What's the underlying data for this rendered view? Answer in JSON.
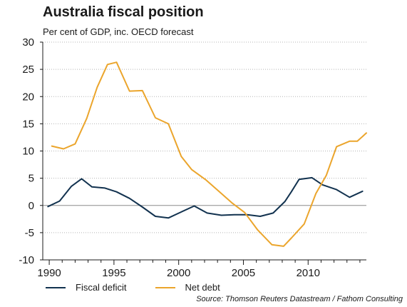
{
  "chart_data": {
    "type": "line",
    "title": "Australia fiscal position",
    "subtitle": "Per cent of GDP, inc. OECD forecast",
    "xlabel": "",
    "ylabel": "",
    "xlim": [
      1989.5,
      2014.5
    ],
    "ylim": [
      -10,
      30
    ],
    "x_ticks": [
      1990,
      1995,
      2000,
      2005,
      2010
    ],
    "y_ticks": [
      30,
      25,
      20,
      15,
      10,
      5,
      0,
      -5,
      -10
    ],
    "grid": true,
    "legend_position": "bottom-left",
    "series": [
      {
        "name": "Fiscal deficit",
        "color": "#12324f",
        "x": [
          1989.9,
          1990.8,
          1991.7,
          1992.5,
          1993.3,
          1994.3,
          1995.2,
          1996.2,
          1997.2,
          1998.2,
          1999.2,
          2000.2,
          2001.2,
          2002.2,
          2003.3,
          2004.3,
          2005.3,
          2006.3,
          2007.3,
          2008.2,
          2008.7,
          2009.3,
          2010.3,
          2011.1,
          2012.2,
          2013.2,
          2014.2
        ],
        "values": [
          -0.2,
          0.8,
          3.5,
          4.9,
          3.4,
          3.2,
          2.5,
          1.3,
          -0.3,
          -2.0,
          -2.3,
          -1.2,
          -0.1,
          -1.4,
          -1.8,
          -1.7,
          -1.7,
          -2.0,
          -1.4,
          0.7,
          2.5,
          4.8,
          5.1,
          3.8,
          2.9,
          1.5,
          2.6
        ]
      },
      {
        "name": "Net debt",
        "color": "#eba52c",
        "x": [
          1990.2,
          1991.1,
          1992.0,
          1992.9,
          1993.7,
          1994.5,
          1995.2,
          1996.2,
          1997.2,
          1998.2,
          1999.2,
          2000.2,
          2001.0,
          2002.1,
          2003.1,
          2004.1,
          2005.1,
          2006.1,
          2007.2,
          2008.1,
          2008.7,
          2009.7,
          2010.6,
          2011.4,
          2012.2,
          2013.2,
          2013.8,
          2014.5
        ],
        "values": [
          10.9,
          10.4,
          11.3,
          16.0,
          21.7,
          25.9,
          26.3,
          21.0,
          21.1,
          16.1,
          15.0,
          9.0,
          6.6,
          4.7,
          2.6,
          0.5,
          -1.3,
          -4.5,
          -7.2,
          -7.5,
          -6.0,
          -3.4,
          2.2,
          5.5,
          10.8,
          11.8,
          11.8,
          13.3
        ]
      }
    ],
    "source": "Source: Thomson Reuters Datastream / Fathom Consulting"
  }
}
